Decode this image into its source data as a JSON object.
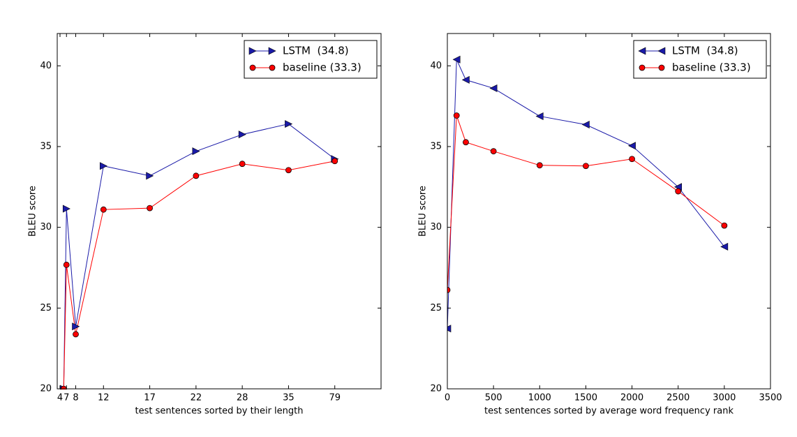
{
  "chart_data": [
    {
      "type": "line",
      "xlabel": "test sentences sorted by their length",
      "ylabel": "BLEU score",
      "x": [
        70,
        100,
        200,
        500,
        1000,
        1500,
        2000,
        2500,
        3000
      ],
      "xlim": [
        0,
        3500
      ],
      "ylim": [
        20,
        42
      ],
      "xticks": [
        {
          "value": 30,
          "label": "4"
        },
        {
          "value": 100,
          "label": "7"
        },
        {
          "value": 200,
          "label": "8"
        },
        {
          "value": 500,
          "label": "12"
        },
        {
          "value": 1000,
          "label": "17"
        },
        {
          "value": 1500,
          "label": "22"
        },
        {
          "value": 2000,
          "label": "28"
        },
        {
          "value": 2500,
          "label": "35"
        },
        {
          "value": 3000,
          "label": "79"
        }
      ],
      "yticks": [
        20,
        25,
        30,
        35,
        40
      ],
      "legend": "upper right",
      "series": [
        {
          "name": "LSTM  (34.8)",
          "color": "#1a1aa8",
          "marker": "triangle-right",
          "values": [
            20,
            31.15,
            23.86,
            33.8,
            33.19,
            34.71,
            35.75,
            36.4,
            34.23
          ]
        },
        {
          "name": "baseline (33.3)",
          "color": "#ff0000",
          "marker": "circle",
          "values": [
            20,
            27.68,
            23.38,
            31.1,
            31.19,
            33.19,
            33.93,
            33.54,
            34.1
          ]
        }
      ]
    },
    {
      "type": "line",
      "xlabel": "test sentences sorted by average word frequency rank",
      "ylabel": "BLEU score",
      "x": [
        0,
        100,
        200,
        500,
        1000,
        1500,
        2000,
        2500,
        3000
      ],
      "xlim": [
        0,
        3500
      ],
      "ylim": [
        20,
        42
      ],
      "xticks": [
        0,
        500,
        1000,
        1500,
        2000,
        2500,
        3000,
        3500
      ],
      "yticks": [
        20,
        25,
        30,
        35,
        40
      ],
      "legend": "upper right",
      "series": [
        {
          "name": "LSTM  (34.8)",
          "color": "#1a1aa8",
          "marker": "triangle-left",
          "values": [
            23.73,
            40.39,
            39.13,
            38.61,
            36.88,
            36.36,
            35.05,
            32.5,
            28.8
          ]
        },
        {
          "name": "baseline (33.3)",
          "color": "#ff0000",
          "marker": "circle",
          "values": [
            26.12,
            36.92,
            35.27,
            34.71,
            33.84,
            33.8,
            34.23,
            32.23,
            30.11
          ]
        }
      ]
    }
  ]
}
